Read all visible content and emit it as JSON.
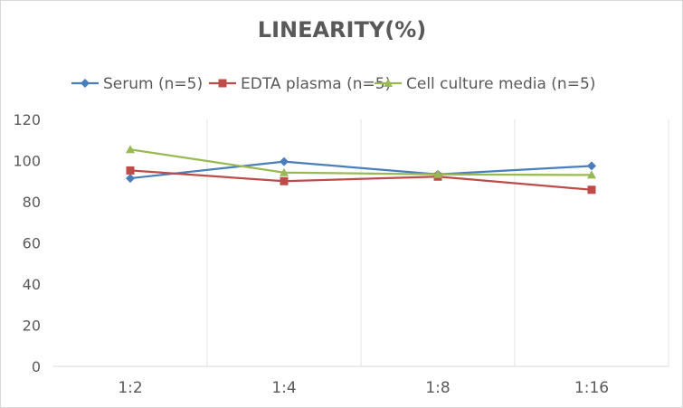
{
  "chart_data": {
    "type": "line",
    "title": "LINEARITY(%)",
    "categories": [
      "1:2",
      "1:4",
      "1:8",
      "1:16"
    ],
    "series": [
      {
        "name": "Serum (n=5)",
        "color": "#4a7ebb",
        "marker": "diamond",
        "values": [
          91.4,
          99.5,
          93.3,
          97.4
        ]
      },
      {
        "name": "EDTA plasma (n=5)",
        "color": "#be4b48",
        "marker": "square",
        "values": [
          95.2,
          90,
          92.2,
          85.8
        ]
      },
      {
        "name": "Cell culture media (n=5)",
        "color": "#98b954",
        "marker": "triangle",
        "values": [
          105.4,
          94.2,
          93.3,
          93
        ]
      }
    ],
    "ylim": [
      0,
      120
    ],
    "yticks": [
      0,
      20,
      40,
      60,
      80,
      100,
      120
    ],
    "grid": "vertical",
    "legend": "top"
  }
}
